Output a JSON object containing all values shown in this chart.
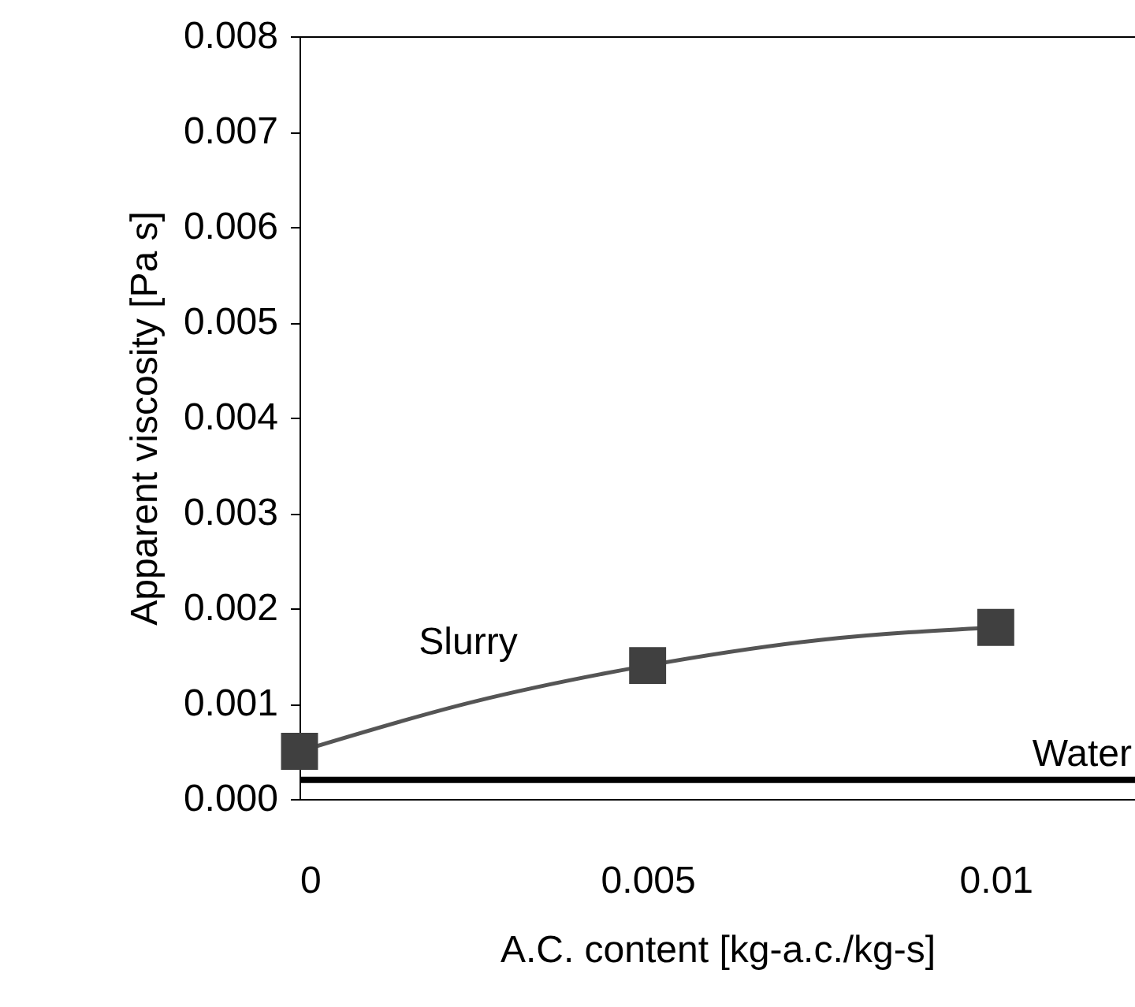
{
  "chart_data": {
    "type": "scatter",
    "xlabel": "A.C. content  [kg-a.c./kg-s]",
    "ylabel": "Apparent  viscosity [Pa s]",
    "xlim": [
      0,
      0.012
    ],
    "xticks": [
      0,
      0.005,
      0.01
    ],
    "ylim": [
      0,
      0.008
    ],
    "yticks": [
      {
        "value": 0,
        "label": "0.000"
      },
      {
        "value": 0.001,
        "label": "0.001"
      },
      {
        "value": 0.002,
        "label": "0.002"
      },
      {
        "value": 0.003,
        "label": "0.003"
      },
      {
        "value": 0.004,
        "label": "0.004"
      },
      {
        "value": 0.005,
        "label": "0.005"
      },
      {
        "value": 0.006,
        "label": "0.006"
      },
      {
        "value": 0.007,
        "label": "0.007"
      },
      {
        "value": 0.008,
        "label": "0.008"
      }
    ],
    "series": [
      {
        "type": "line",
        "color": "#555555",
        "x": [
          0,
          0.0025,
          0.005,
          0.0075,
          0.01
        ],
        "values": [
          0.0005,
          0.00102,
          0.0014,
          0.00167,
          0.0018
        ],
        "marker": "none"
      },
      {
        "color": "#404040",
        "x": [
          0,
          0.005,
          0.01
        ],
        "values": [
          0.0005,
          0.0014,
          0.0018
        ],
        "marker": "square"
      }
    ],
    "ref_lines": [
      {
        "axis": "y",
        "value": 0.0002,
        "label": "Water",
        "color": "#000000"
      }
    ],
    "annotations": [
      "Slurry"
    ],
    "grid": false
  }
}
